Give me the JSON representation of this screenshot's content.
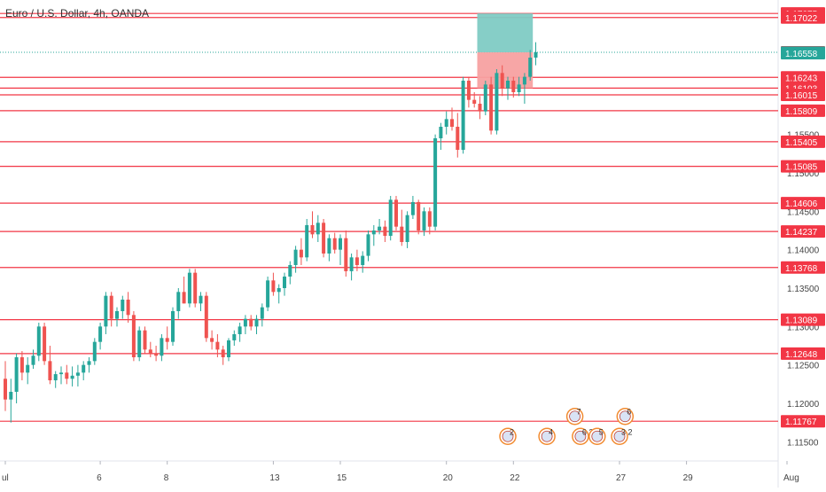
{
  "header": {
    "symbol_title": "Euro / U.S. Dollar, 4h, OANDA"
  },
  "colors": {
    "up": "#26a69a",
    "down": "#ef5350",
    "level_line": "#f23645",
    "price_line": "#26a69a",
    "target_zone": "#80cbc4",
    "stop_zone": "#f7a1a1",
    "axis_text": "#444444"
  },
  "chart_data": {
    "type": "candlestick",
    "title": "Euro / U.S. Dollar, 4h, OANDA",
    "xlabel": "",
    "ylabel": "",
    "ylim": [
      1.1125,
      1.1725
    ],
    "x_ticks": [
      "ul",
      "6",
      "8",
      "13",
      "15",
      "20",
      "22",
      "27",
      "29",
      "Aug"
    ],
    "y_ticks": [
      "1.16000",
      "1.15500",
      "1.15000",
      "1.14500",
      "1.14000",
      "1.13500",
      "1.13000",
      "1.12500",
      "1.12000",
      "1.11500"
    ],
    "current_price": 1.16569,
    "levels": [
      1.17075,
      1.17022,
      1.16558,
      1.16243,
      1.16103,
      1.16015,
      1.15809,
      1.15405,
      1.15085,
      1.14606,
      1.14237,
      1.13768,
      1.13089,
      1.12648,
      1.11767
    ],
    "highlighted_labels": [
      "1.17075",
      "1.17022",
      "1.16569",
      "1.16558",
      "1.16243",
      "1.16103",
      "1.16015",
      "1.15809",
      "1.15405",
      "1.15085",
      "1.14606",
      "1.14237",
      "1.13768",
      "1.13089",
      "1.12648",
      "1.11767"
    ],
    "position": {
      "entry": 1.16569,
      "target": 1.17075,
      "stop": 1.16103,
      "start_bar": 85,
      "end_bar": 94
    },
    "candles": [
      [
        1.1232,
        1.1255,
        1.119,
        1.1205
      ],
      [
        1.1205,
        1.1232,
        1.1175,
        1.1215
      ],
      [
        1.1215,
        1.1265,
        1.12,
        1.126
      ],
      [
        1.126,
        1.1268,
        1.123,
        1.124
      ],
      [
        1.124,
        1.126,
        1.1225,
        1.125
      ],
      [
        1.125,
        1.127,
        1.1245,
        1.1262
      ],
      [
        1.1262,
        1.1305,
        1.1255,
        1.13
      ],
      [
        1.13,
        1.1305,
        1.125,
        1.1255
      ],
      [
        1.1255,
        1.1275,
        1.1225,
        1.123
      ],
      [
        1.123,
        1.1242,
        1.122,
        1.1238
      ],
      [
        1.1238,
        1.1248,
        1.1225,
        1.124
      ],
      [
        1.124,
        1.125,
        1.1225,
        1.1232
      ],
      [
        1.1232,
        1.1248,
        1.1222,
        1.1236
      ],
      [
        1.1236,
        1.125,
        1.1222,
        1.124
      ],
      [
        1.124,
        1.1255,
        1.123,
        1.125
      ],
      [
        1.125,
        1.126,
        1.124,
        1.1255
      ],
      [
        1.1255,
        1.1285,
        1.125,
        1.128
      ],
      [
        1.128,
        1.1305,
        1.127,
        1.13
      ],
      [
        1.13,
        1.1345,
        1.129,
        1.134
      ],
      [
        1.134,
        1.1345,
        1.13,
        1.131
      ],
      [
        1.131,
        1.1325,
        1.13,
        1.132
      ],
      [
        1.132,
        1.134,
        1.131,
        1.1335
      ],
      [
        1.1335,
        1.1345,
        1.1305,
        1.1315
      ],
      [
        1.1315,
        1.132,
        1.1255,
        1.126
      ],
      [
        1.126,
        1.13,
        1.1255,
        1.1295
      ],
      [
        1.1295,
        1.13,
        1.1265,
        1.127
      ],
      [
        1.127,
        1.128,
        1.126,
        1.1265
      ],
      [
        1.1265,
        1.1275,
        1.1255,
        1.1262
      ],
      [
        1.1262,
        1.129,
        1.1255,
        1.1285
      ],
      [
        1.1285,
        1.13,
        1.127,
        1.128
      ],
      [
        1.128,
        1.1325,
        1.1275,
        1.132
      ],
      [
        1.132,
        1.135,
        1.131,
        1.1345
      ],
      [
        1.1345,
        1.1365,
        1.133,
        1.133
      ],
      [
        1.133,
        1.1375,
        1.1325,
        1.137
      ],
      [
        1.137,
        1.1375,
        1.1325,
        1.133
      ],
      [
        1.133,
        1.1345,
        1.132,
        1.134
      ],
      [
        1.134,
        1.1345,
        1.128,
        1.1285
      ],
      [
        1.1285,
        1.1295,
        1.127,
        1.128
      ],
      [
        1.128,
        1.129,
        1.126,
        1.127
      ],
      [
        1.127,
        1.1275,
        1.125,
        1.126
      ],
      [
        1.126,
        1.1285,
        1.1255,
        1.1282
      ],
      [
        1.1282,
        1.1295,
        1.1275,
        1.129
      ],
      [
        1.129,
        1.1305,
        1.128,
        1.13
      ],
      [
        1.13,
        1.1315,
        1.129,
        1.131
      ],
      [
        1.131,
        1.1315,
        1.1295,
        1.13
      ],
      [
        1.13,
        1.1315,
        1.129,
        1.131
      ],
      [
        1.131,
        1.133,
        1.13,
        1.1325
      ],
      [
        1.1325,
        1.1365,
        1.132,
        1.136
      ],
      [
        1.136,
        1.137,
        1.134,
        1.1345
      ],
      [
        1.1345,
        1.1355,
        1.133,
        1.135
      ],
      [
        1.135,
        1.137,
        1.134,
        1.1365
      ],
      [
        1.1365,
        1.1385,
        1.1355,
        1.138
      ],
      [
        1.138,
        1.1405,
        1.137,
        1.14
      ],
      [
        1.14,
        1.1415,
        1.138,
        1.139
      ],
      [
        1.139,
        1.144,
        1.1385,
        1.1432
      ],
      [
        1.1432,
        1.145,
        1.1415,
        1.142
      ],
      [
        1.142,
        1.1445,
        1.141,
        1.1435
      ],
      [
        1.1435,
        1.144,
        1.139,
        1.1395
      ],
      [
        1.1395,
        1.142,
        1.1385,
        1.1415
      ],
      [
        1.1415,
        1.1422,
        1.1395,
        1.14
      ],
      [
        1.14,
        1.142,
        1.138,
        1.1415
      ],
      [
        1.1415,
        1.1425,
        1.1365,
        1.1372
      ],
      [
        1.1372,
        1.1395,
        1.136,
        1.139
      ],
      [
        1.139,
        1.14,
        1.1372,
        1.138
      ],
      [
        1.138,
        1.1398,
        1.137,
        1.1392
      ],
      [
        1.1392,
        1.1425,
        1.1385,
        1.142
      ],
      [
        1.142,
        1.1432,
        1.1405,
        1.1425
      ],
      [
        1.1425,
        1.144,
        1.142,
        1.143
      ],
      [
        1.143,
        1.1438,
        1.141,
        1.1418
      ],
      [
        1.1418,
        1.147,
        1.1412,
        1.1465
      ],
      [
        1.1465,
        1.147,
        1.1425,
        1.143
      ],
      [
        1.143,
        1.1452,
        1.1405,
        1.141
      ],
      [
        1.141,
        1.145,
        1.1402,
        1.1445
      ],
      [
        1.1445,
        1.147,
        1.144,
        1.1462
      ],
      [
        1.1462,
        1.1465,
        1.142,
        1.1425
      ],
      [
        1.1425,
        1.1455,
        1.1418,
        1.145
      ],
      [
        1.145,
        1.1455,
        1.142,
        1.143
      ],
      [
        1.143,
        1.155,
        1.1425,
        1.1545
      ],
      [
        1.1545,
        1.1565,
        1.153,
        1.156
      ],
      [
        1.156,
        1.158,
        1.155,
        1.157
      ],
      [
        1.157,
        1.1585,
        1.1555,
        1.156
      ],
      [
        1.156,
        1.1578,
        1.152,
        1.153
      ],
      [
        1.153,
        1.1625,
        1.1525,
        1.162
      ],
      [
        1.162,
        1.1625,
        1.1585,
        1.1595
      ],
      [
        1.1595,
        1.1605,
        1.1585,
        1.159
      ],
      [
        1.159,
        1.16,
        1.157,
        1.158
      ],
      [
        1.158,
        1.162,
        1.1575,
        1.1615
      ],
      [
        1.1615,
        1.1625,
        1.155,
        1.1555
      ],
      [
        1.1555,
        1.1635,
        1.155,
        1.163
      ],
      [
        1.163,
        1.164,
        1.16,
        1.161
      ],
      [
        1.161,
        1.1625,
        1.1595,
        1.162
      ],
      [
        1.162,
        1.1625,
        1.1598,
        1.1605
      ],
      [
        1.1605,
        1.1625,
        1.16,
        1.1615
      ],
      [
        1.1615,
        1.163,
        1.159,
        1.1625
      ],
      [
        1.1625,
        1.166,
        1.162,
        1.165
      ],
      [
        1.165,
        1.167,
        1.164,
        1.1657
      ]
    ],
    "events": [
      {
        "x_bar": 102,
        "price": 1.1183,
        "label": "7"
      },
      {
        "x_bar": 111,
        "price": 1.1183,
        "label": "6"
      },
      {
        "x_bar": 90,
        "price": 1.1157,
        "label": "2"
      },
      {
        "x_bar": 97,
        "price": 1.1157,
        "label": "4"
      },
      {
        "x_bar": 103,
        "price": 1.1157,
        "label": "6 2"
      },
      {
        "x_bar": 106,
        "price": 1.1157,
        "label": "5"
      },
      {
        "x_bar": 110,
        "price": 1.1157,
        "label": "3 2"
      }
    ]
  }
}
